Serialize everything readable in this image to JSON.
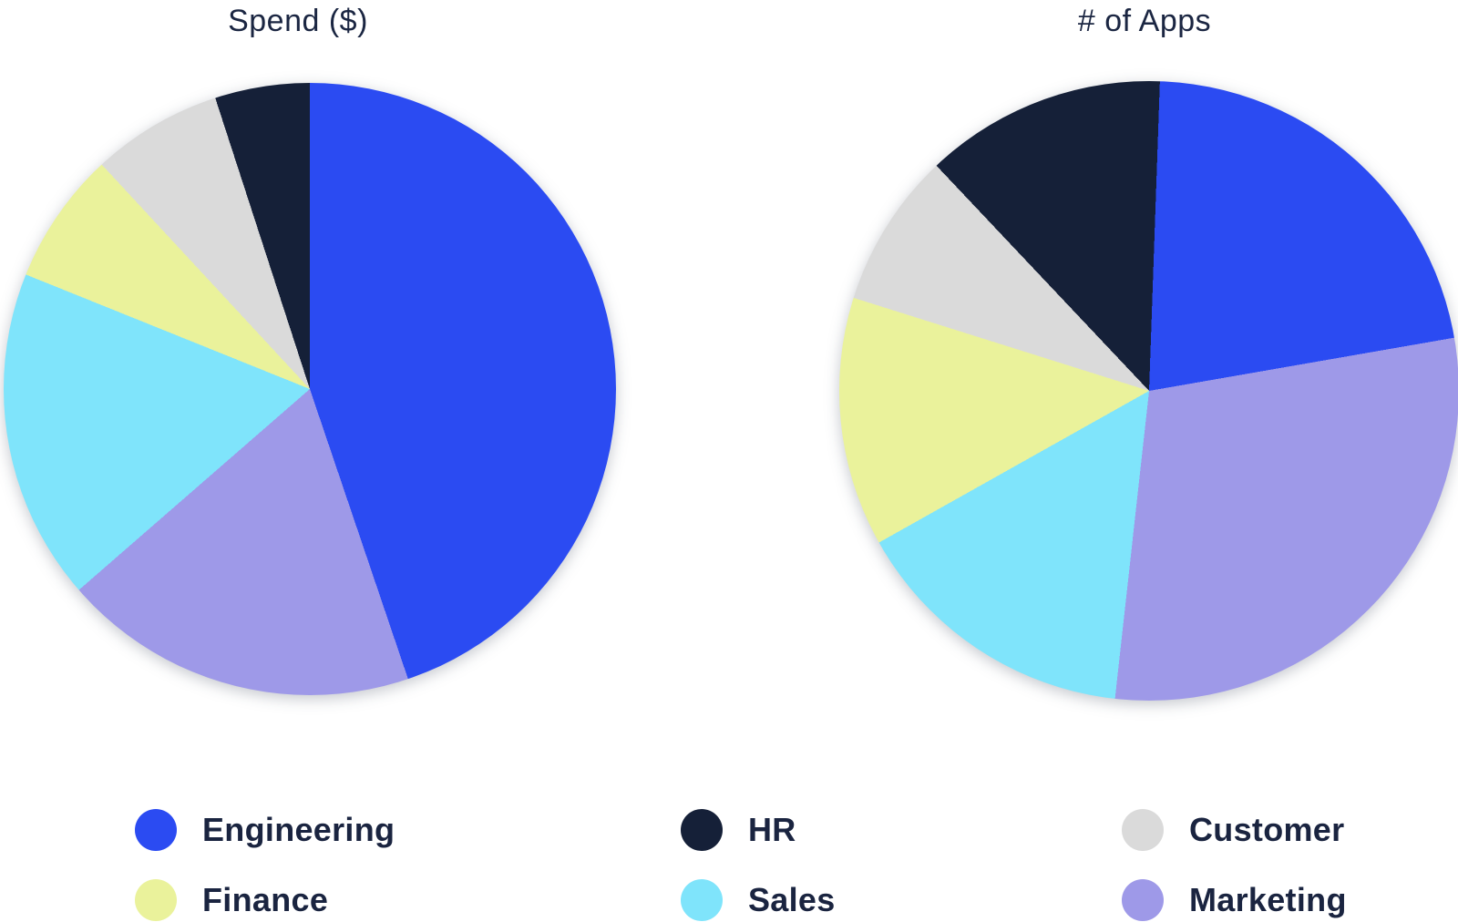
{
  "palette": {
    "engineering": "#2B4BF2",
    "hr": "#152038",
    "customer": "#DADADA",
    "finance": "#EAF29B",
    "sales": "#7FE4FB",
    "marketing": "#9E99E8"
  },
  "text_color": "#1B2642",
  "charts": [
    {
      "title": "Spend ($)"
    },
    {
      "title": "# of Apps"
    }
  ],
  "legend": {
    "items": [
      {
        "key": "engineering",
        "label": "Engineering"
      },
      {
        "key": "hr",
        "label": "HR"
      },
      {
        "key": "customer",
        "label": "Customer"
      },
      {
        "key": "finance",
        "label": "Finance"
      },
      {
        "key": "sales",
        "label": "Sales"
      },
      {
        "key": "marketing",
        "label": "Marketing"
      }
    ]
  },
  "chart_data": [
    {
      "type": "pie",
      "title": "Spend ($)",
      "legend_position": "bottom",
      "start_angle_deg": 0,
      "clockwise": true,
      "units": "percent (estimated from slice angles, no numeric labels shown)",
      "slices": [
        {
          "dept_key": "engineering",
          "label": "Engineering",
          "percent": 44.8
        },
        {
          "dept_key": "marketing",
          "label": "Marketing",
          "percent": 18.8
        },
        {
          "dept_key": "sales",
          "label": "Sales",
          "percent": 17.5
        },
        {
          "dept_key": "finance",
          "label": "Finance",
          "percent": 7.0
        },
        {
          "dept_key": "customer",
          "label": "Customer",
          "percent": 6.9
        },
        {
          "dept_key": "hr",
          "label": "HR",
          "percent": 5.0
        }
      ]
    },
    {
      "type": "pie",
      "title": "# of Apps",
      "legend_position": "bottom",
      "start_angle_deg": 2,
      "clockwise": true,
      "units": "percent (estimated from slice angles, no numeric labels shown)",
      "slices": [
        {
          "dept_key": "engineering",
          "label": "Engineering",
          "percent": 21.7
        },
        {
          "dept_key": "marketing",
          "label": "Marketing",
          "percent": 29.5
        },
        {
          "dept_key": "sales",
          "label": "Sales",
          "percent": 15.1
        },
        {
          "dept_key": "finance",
          "label": "Finance",
          "percent": 13.0
        },
        {
          "dept_key": "customer",
          "label": "Customer",
          "percent": 8.1
        },
        {
          "dept_key": "hr",
          "label": "HR",
          "percent": 12.6
        }
      ]
    }
  ]
}
